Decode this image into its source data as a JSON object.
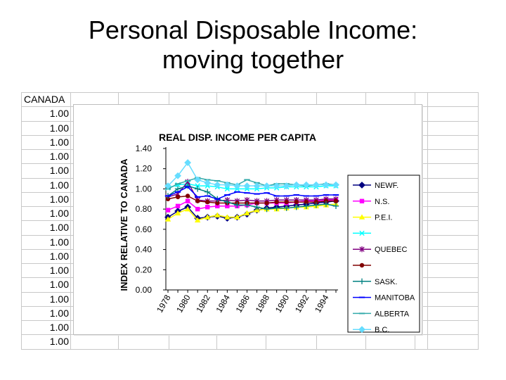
{
  "slide": {
    "title_line1": "Personal Disposable Income:",
    "title_line2": "moving together"
  },
  "sheet": {
    "column_header": "CANADA",
    "values": [
      "1.00",
      "1.00",
      "1.00",
      "1.00",
      "1.00",
      "1.00",
      "1.00",
      "1.00",
      "1.00",
      "1.00",
      "1.00",
      "1.00",
      "1.00",
      "1.00",
      "1.00",
      "1.00",
      "1.00"
    ]
  },
  "chart_data": {
    "type": "line",
    "title": "REAL DISP. INCOME PER CAPITA",
    "xlabel": "",
    "ylabel": "INDEX RELATIVE TO CANADA",
    "ylim": [
      0,
      1.4
    ],
    "yticks": [
      "0.00",
      "0.20",
      "0.40",
      "0.60",
      "0.80",
      "1.00",
      "1.20",
      "1.40"
    ],
    "x": [
      1978,
      1979,
      1980,
      1981,
      1982,
      1983,
      1984,
      1985,
      1986,
      1987,
      1988,
      1989,
      1990,
      1991,
      1992,
      1993,
      1994,
      1995
    ],
    "xtick_labels": [
      "1978",
      "1980",
      "1982",
      "1984",
      "1986",
      "1988",
      "1990",
      "1992",
      "1994"
    ],
    "grid": false,
    "legend_position": "right",
    "series": [
      {
        "name": "NEWF.",
        "color": "#000080",
        "marker": "diamond",
        "values": [
          0.72,
          0.78,
          0.82,
          0.71,
          0.72,
          0.73,
          0.71,
          0.72,
          0.75,
          0.79,
          0.81,
          0.82,
          0.83,
          0.84,
          0.85,
          0.86,
          0.87,
          0.88
        ]
      },
      {
        "name": "N.S.",
        "color": "#ff00ff",
        "marker": "square",
        "values": [
          0.79,
          0.83,
          0.88,
          0.8,
          0.82,
          0.83,
          0.83,
          0.83,
          0.84,
          0.86,
          0.86,
          0.86,
          0.86,
          0.87,
          0.88,
          0.88,
          0.89,
          0.89
        ]
      },
      {
        "name": "P.E.I.",
        "color": "#ffff00",
        "marker": "triangle",
        "values": [
          0.7,
          0.76,
          0.8,
          0.69,
          0.72,
          0.74,
          0.72,
          0.72,
          0.76,
          0.79,
          0.8,
          0.8,
          0.81,
          0.82,
          0.82,
          0.83,
          0.84,
          0.85
        ]
      },
      {
        "name": "",
        "color": "#00ffff",
        "marker": "x",
        "values": [
          1.01,
          1.04,
          1.05,
          1.03,
          1.03,
          1.02,
          1.0,
          1.0,
          1.0,
          1.0,
          1.01,
          1.01,
          1.02,
          1.02,
          1.02,
          1.02,
          1.03,
          1.03
        ]
      },
      {
        "name": "QUEBEC",
        "color": "#800080",
        "marker": "asterisk",
        "values": [
          0.92,
          0.95,
          1.07,
          0.89,
          0.88,
          0.88,
          0.89,
          0.88,
          0.89,
          0.88,
          0.88,
          0.89,
          0.89,
          0.89,
          0.89,
          0.89,
          0.9,
          0.9
        ]
      },
      {
        "name": "",
        "color": "#800000",
        "marker": "circle",
        "values": [
          0.9,
          0.92,
          0.93,
          0.88,
          0.87,
          0.86,
          0.86,
          0.86,
          0.86,
          0.86,
          0.86,
          0.87,
          0.87,
          0.87,
          0.87,
          0.87,
          0.88,
          0.88
        ]
      },
      {
        "name": "SASK.",
        "color": "#008080",
        "marker": "plus",
        "values": [
          0.93,
          1.0,
          1.03,
          1.0,
          0.97,
          0.9,
          0.87,
          0.84,
          0.84,
          0.82,
          0.8,
          0.81,
          0.81,
          0.82,
          0.83,
          0.84,
          0.85,
          0.83
        ]
      },
      {
        "name": "MANITOBA",
        "color": "#0000ff",
        "marker": "dash",
        "values": [
          0.93,
          0.97,
          1.02,
          0.92,
          0.93,
          0.9,
          0.94,
          0.97,
          0.96,
          0.95,
          0.96,
          0.93,
          0.93,
          0.94,
          0.93,
          0.93,
          0.94,
          0.94
        ]
      },
      {
        "name": "ALBERTA",
        "color": "#33aaaa",
        "marker": "dash",
        "values": [
          1.0,
          1.05,
          1.08,
          1.11,
          1.09,
          1.08,
          1.06,
          1.04,
          1.09,
          1.06,
          1.03,
          1.05,
          1.05,
          1.04,
          1.03,
          1.04,
          1.05,
          1.04
        ]
      },
      {
        "name": "B.C.",
        "color": "#66ddff",
        "marker": "diamond",
        "values": [
          1.03,
          1.13,
          1.26,
          1.09,
          1.06,
          1.04,
          1.04,
          1.03,
          1.03,
          1.03,
          1.03,
          1.03,
          1.03,
          1.04,
          1.04,
          1.04,
          1.04,
          1.04
        ]
      }
    ]
  }
}
